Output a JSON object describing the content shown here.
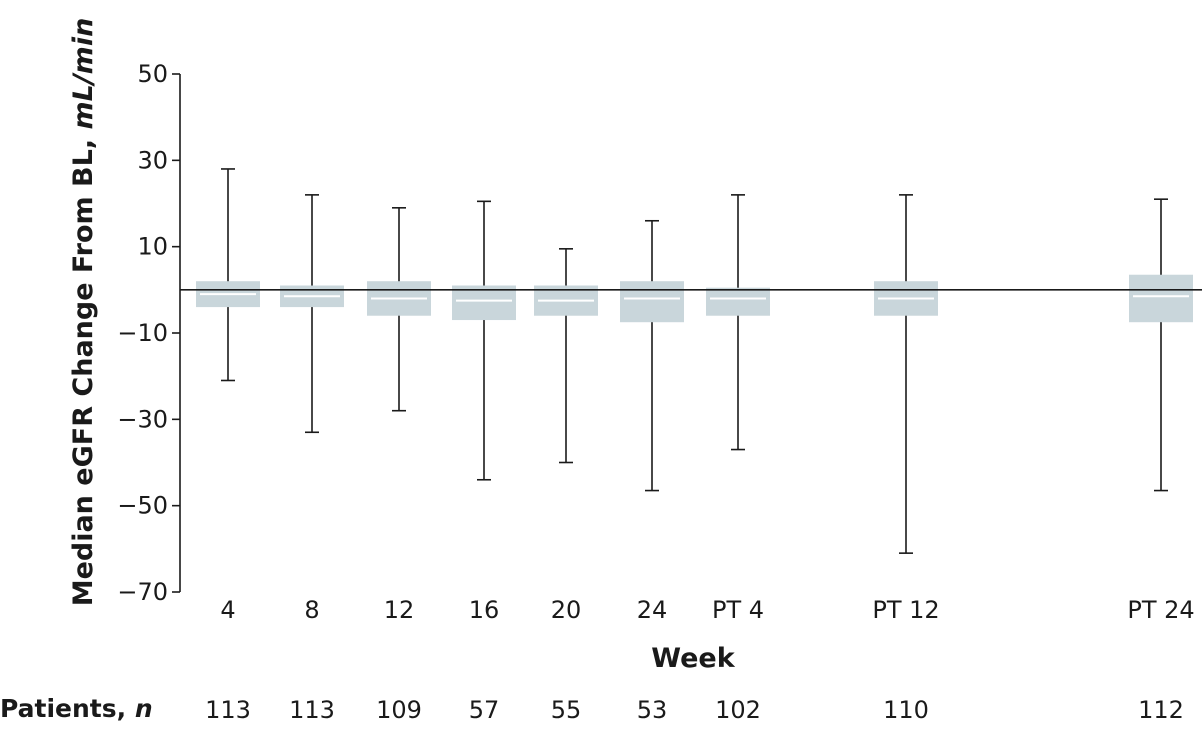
{
  "chart_data": {
    "type": "box",
    "title": "",
    "xlabel": "Week",
    "ylabel_prefix": "Median eGFR Change From BL, ",
    "ylabel_unit": "mL/min",
    "ylim": [
      -70,
      50
    ],
    "yticks": [
      "50",
      "30",
      "10",
      "−10",
      "−30",
      "−50",
      "−70"
    ],
    "ytick_values": [
      50,
      30,
      10,
      -10,
      -30,
      -50,
      -70
    ],
    "reference_line_y": 0,
    "box_color": "#c9d6db",
    "median_color": "#ffffff",
    "categories": [
      "4",
      "8",
      "12",
      "16",
      "20",
      "24",
      "PT 4",
      "PT 12",
      "PT 24"
    ],
    "boxes": [
      {
        "week": "4",
        "min": -21,
        "q1": -4,
        "median": -1,
        "q3": 2,
        "max": 28
      },
      {
        "week": "8",
        "min": -33,
        "q1": -4,
        "median": -1.5,
        "q3": 1,
        "max": 22
      },
      {
        "week": "12",
        "min": -28,
        "q1": -6,
        "median": -2,
        "q3": 2,
        "max": 19
      },
      {
        "week": "16",
        "min": -44,
        "q1": -7,
        "median": -2.5,
        "q3": 1,
        "max": 20.5
      },
      {
        "week": "20",
        "min": -40,
        "q1": -6,
        "median": -2.5,
        "q3": 1,
        "max": 9.5
      },
      {
        "week": "24",
        "min": -46.5,
        "q1": -7.5,
        "median": -2,
        "q3": 2,
        "max": 16
      },
      {
        "week": "PT 4",
        "min": -37,
        "q1": -6,
        "median": -2,
        "q3": 0.5,
        "max": 22
      },
      {
        "week": "PT 12",
        "min": -61,
        "q1": -6,
        "median": -2,
        "q3": 2,
        "max": 22
      },
      {
        "week": "PT 24",
        "min": -46.5,
        "q1": -7.5,
        "median": -1.5,
        "q3": 3.5,
        "max": 21
      }
    ],
    "patients_label_prefix": "Patients, ",
    "patients_label_n": "n",
    "patients_n": [
      "113",
      "113",
      "109",
      "57",
      "55",
      "53",
      "102",
      "110",
      "112"
    ]
  }
}
